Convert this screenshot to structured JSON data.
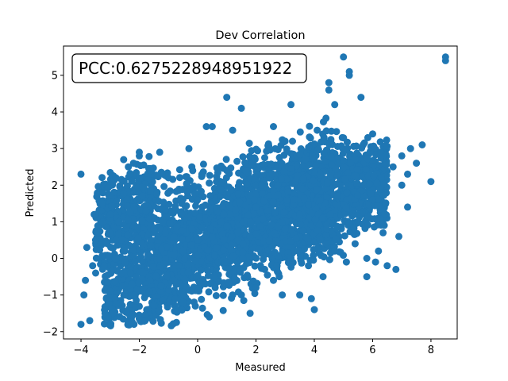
{
  "chart_data": {
    "type": "scatter",
    "title": "Dev Correlation",
    "xlabel": "Measured",
    "ylabel": "Predicted",
    "xlim": [
      -4.6,
      8.9
    ],
    "ylim": [
      -2.2,
      5.8
    ],
    "xticks": [
      -4,
      -2,
      0,
      2,
      4,
      6,
      8
    ],
    "yticks": [
      -2,
      -1,
      0,
      1,
      2,
      3,
      4,
      5
    ],
    "annotation": "PCC:0.6275228948951922",
    "grid": false,
    "marker_color": "#1f77b4",
    "series": [
      {
        "x": [
          -4.0,
          -3.9,
          -3.85,
          -3.7,
          -3.6,
          -3.55,
          -3.5,
          -3.4,
          -3.3,
          -3.2,
          -3.1,
          -3.0,
          -3.0,
          -2.9,
          -2.8,
          -2.7,
          -2.5,
          -2.3,
          -2.2,
          -2.0,
          -1.9,
          -1.8,
          -1.6,
          -1.5,
          -1.3,
          -1.0,
          -0.8,
          -0.5,
          -0.3,
          0.0,
          0.3,
          0.6,
          0.9,
          1.2,
          1.5,
          1.8,
          2.0,
          2.3,
          2.6,
          2.9,
          3.2,
          3.5,
          3.7,
          3.9,
          4.1,
          4.3,
          4.5,
          4.7,
          4.9,
          5.1,
          5.2,
          5.4,
          5.6,
          5.8,
          6.0,
          6.1,
          6.3,
          6.5,
          6.7,
          6.9,
          7.0,
          7.2,
          7.3,
          7.5,
          7.7,
          8.0,
          8.5,
          8.5,
          5.0,
          5.2,
          4.7,
          4.5,
          3.0,
          1.0,
          0.5,
          -0.2,
          2.2,
          3.5,
          4.2,
          6.2,
          6.8,
          7.0,
          3.0,
          2.0,
          1.0,
          -1.0,
          -2.5,
          -3.8,
          0.8,
          2.6,
          3.8,
          5.5,
          1.5,
          -0.8,
          -2.8,
          4.0,
          6.0,
          3.2,
          1.8,
          -0.5,
          -3.5,
          0.0,
          2.8,
          -2.0,
          -1.2,
          0.4,
          5.8,
          7.2,
          3.6,
          2.4,
          1.2,
          -0.2,
          -1.6,
          -3.0,
          4.8,
          6.4,
          2.0,
          -4.0
        ],
        "y": [
          -1.8,
          -1.0,
          -0.6,
          -1.7,
          -0.2,
          1.2,
          0.5,
          0.7,
          1.3,
          -0.2,
          0.4,
          1.1,
          -0.9,
          -1.5,
          2.2,
          1.0,
          0.3,
          -0.4,
          2.6,
          2.8,
          1.7,
          -1.7,
          2.3,
          0.8,
          2.9,
          2.2,
          0.1,
          -1.2,
          3.0,
          0.5,
          3.6,
          -0.8,
          1.2,
          3.5,
          4.1,
          -1.5,
          2.0,
          -0.3,
          3.6,
          -1.0,
          4.2,
          -1.0,
          2.7,
          -1.1,
          3.5,
          -0.5,
          4.6,
          0.2,
          2.0,
          -0.1,
          5.1,
          0.4,
          4.4,
          -0.5,
          3.4,
          -0.1,
          2.2,
          -0.2,
          2.5,
          0.6,
          2.8,
          1.4,
          3.0,
          2.6,
          3.1,
          2.1,
          5.4,
          5.5,
          5.5,
          5.0,
          4.2,
          4.8,
          3.2,
          4.4,
          3.6,
          2.5,
          2.0,
          1.2,
          0.5,
          0.2,
          -0.3,
          2.0,
          0.8,
          1.4,
          2.4,
          1.8,
          0.2,
          0.3,
          1.0,
          -0.6,
          -0.2,
          1.0,
          -1.0,
          -0.6,
          0.5,
          -1.4,
          1.6,
          0.0,
          0.6,
          0.2,
          1.2,
          1.6,
          -0.5,
          2.9,
          1.0,
          -1.6,
          0.0,
          2.3,
          1.9,
          1.3,
          -1.0,
          0.8,
          2.4,
          1.2,
          1.7,
          0.9,
          -0.8,
          2.3
        ],
        "blob": [
          [
            -3.5,
            -1.5,
            -0.5,
            2.6
          ],
          [
            -1.5,
            1.5,
            -1.5,
            3.0
          ],
          [
            1.5,
            3.5,
            -1.2,
            3.6
          ],
          [
            3.5,
            5.0,
            -0.8,
            3.8
          ],
          [
            5.0,
            6.5,
            0.4,
            3.2
          ]
        ]
      }
    ]
  }
}
